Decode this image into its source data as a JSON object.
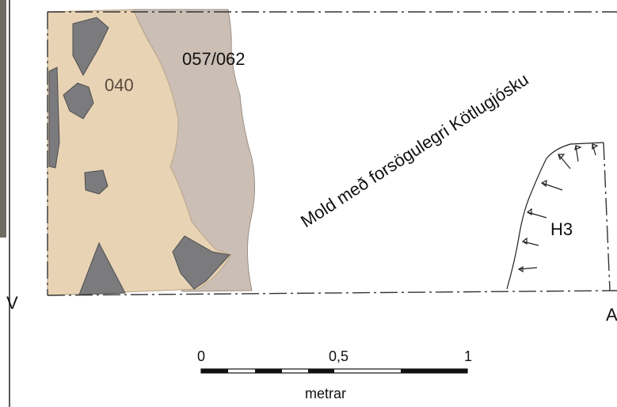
{
  "labels": {
    "layer_040": "040",
    "layer_057_062": "057/062",
    "soil_description": "Mold með forsögulegri Kötlugjósku",
    "feature_h3": "H3",
    "west": "V",
    "east": "A"
  },
  "scale_bar": {
    "tick_0": "0",
    "tick_mid": "0,5",
    "tick_1": "1",
    "unit": "metrar"
  },
  "colors": {
    "layer_040": "#e8d3b5",
    "layer_057_062": "#cbbfb5",
    "stones": "#7b7b7d",
    "outline": "#555555"
  }
}
